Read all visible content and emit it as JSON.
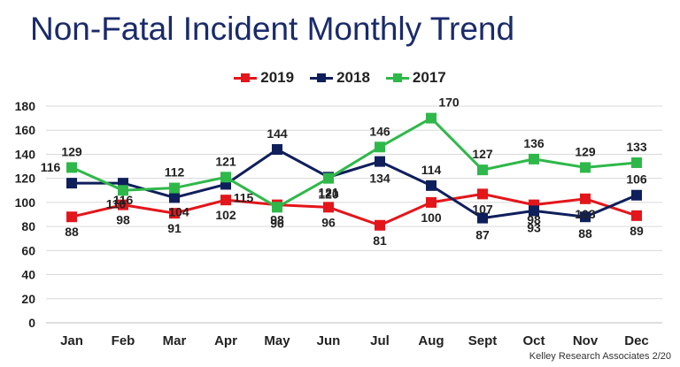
{
  "title": "Non-Fatal Incident Monthly Trend",
  "footer": "Kelley Research Associates 2/20",
  "colors": {
    "2019": "#e3161b",
    "2018": "#0e1f5b",
    "2017": "#2fb84a"
  },
  "chart_data": {
    "type": "line",
    "categories": [
      "Jan",
      "Feb",
      "Mar",
      "Apr",
      "May",
      "Jun",
      "Jul",
      "Aug",
      "Sept",
      "Oct",
      "Nov",
      "Dec"
    ],
    "ylim": [
      0,
      180
    ],
    "yticks": [
      0,
      20,
      40,
      60,
      80,
      100,
      120,
      140,
      160,
      180
    ],
    "grid": true,
    "legend_position": "top-center",
    "series": [
      {
        "name": "2019",
        "values": [
          88,
          98,
          91,
          102,
          98,
          96,
          81,
          100,
          107,
          98,
          103,
          89
        ]
      },
      {
        "name": "2018",
        "values": [
          116,
          116,
          104,
          115,
          144,
          121,
          134,
          114,
          87,
          93,
          88,
          106
        ]
      },
      {
        "name": "2017",
        "values": [
          129,
          110,
          112,
          121,
          96,
          120,
          146,
          170,
          127,
          136,
          129,
          133
        ]
      }
    ]
  }
}
